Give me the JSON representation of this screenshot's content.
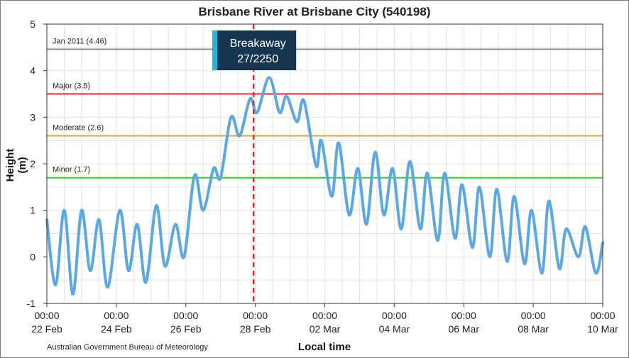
{
  "chart_data": {
    "type": "line",
    "title": "Brisbane River at Brisbane City (540198)",
    "xlabel": "Local time",
    "ylabel": "Height (m)",
    "ylim": [
      -1,
      5
    ],
    "yticks": [
      "-1",
      "0",
      "1",
      "2",
      "3",
      "4",
      "5"
    ],
    "xticks": [
      {
        "time": "00:00",
        "date": "22 Feb"
      },
      {
        "time": "00:00",
        "date": "24 Feb"
      },
      {
        "time": "00:00",
        "date": "26 Feb"
      },
      {
        "time": "00:00",
        "date": "28 Feb"
      },
      {
        "time": "00:00",
        "date": "02 Mar"
      },
      {
        "time": "00:00",
        "date": "04 Mar"
      },
      {
        "time": "00:00",
        "date": "06 Mar"
      },
      {
        "time": "00:00",
        "date": "08 Mar"
      },
      {
        "time": "00:00",
        "date": "10 Mar"
      }
    ],
    "xlim_days": [
      0,
      16
    ],
    "grid": true,
    "thresholds": [
      {
        "label": "Jan 2011 (4.46)",
        "value": 4.46,
        "color": "#8c8c8c"
      },
      {
        "label": "Major (3.5)",
        "value": 3.5,
        "color": "#e8262a"
      },
      {
        "label": "Moderate (2.6)",
        "value": 2.6,
        "color": "#f0a31f"
      },
      {
        "label": "Minor (1.7)",
        "value": 1.7,
        "color": "#2bd42b"
      }
    ],
    "event": {
      "label_line1": "Breakaway",
      "label_line2": "27/2250",
      "day": 5.95,
      "color": "#e8262a"
    },
    "series": [
      {
        "color": "#5aa9e6",
        "points": [
          [
            0.0,
            0.8
          ],
          [
            0.25,
            -0.6
          ],
          [
            0.5,
            1.0
          ],
          [
            0.75,
            -0.8
          ],
          [
            1.0,
            1.0
          ],
          [
            1.25,
            -0.3
          ],
          [
            1.5,
            0.8
          ],
          [
            1.75,
            -0.65
          ],
          [
            2.1,
            1.0
          ],
          [
            2.35,
            -0.3
          ],
          [
            2.6,
            0.7
          ],
          [
            2.85,
            -0.55
          ],
          [
            3.15,
            1.1
          ],
          [
            3.4,
            -0.2
          ],
          [
            3.7,
            0.7
          ],
          [
            3.95,
            0.0
          ],
          [
            4.25,
            1.75
          ],
          [
            4.5,
            1.0
          ],
          [
            4.8,
            1.9
          ],
          [
            5.0,
            1.7
          ],
          [
            5.3,
            3.0
          ],
          [
            5.55,
            2.6
          ],
          [
            5.85,
            3.4
          ],
          [
            6.05,
            3.1
          ],
          [
            6.4,
            3.85
          ],
          [
            6.7,
            3.1
          ],
          [
            6.9,
            3.45
          ],
          [
            7.2,
            2.9
          ],
          [
            7.4,
            3.35
          ],
          [
            7.75,
            1.95
          ],
          [
            7.9,
            2.5
          ],
          [
            8.2,
            1.3
          ],
          [
            8.4,
            2.45
          ],
          [
            8.7,
            0.9
          ],
          [
            8.95,
            1.9
          ],
          [
            9.2,
            0.7
          ],
          [
            9.45,
            2.25
          ],
          [
            9.7,
            0.9
          ],
          [
            9.95,
            1.9
          ],
          [
            10.2,
            0.6
          ],
          [
            10.45,
            2.05
          ],
          [
            10.75,
            0.6
          ],
          [
            10.95,
            1.8
          ],
          [
            11.25,
            0.35
          ],
          [
            11.45,
            1.8
          ],
          [
            11.75,
            0.4
          ],
          [
            11.95,
            1.55
          ],
          [
            12.25,
            0.2
          ],
          [
            12.45,
            1.5
          ],
          [
            12.75,
            0.0
          ],
          [
            12.95,
            1.45
          ],
          [
            13.25,
            -0.1
          ],
          [
            13.45,
            1.3
          ],
          [
            13.75,
            -0.15
          ],
          [
            13.95,
            1.0
          ],
          [
            14.25,
            -0.35
          ],
          [
            14.45,
            1.2
          ],
          [
            14.75,
            -0.25
          ],
          [
            14.95,
            0.6
          ],
          [
            15.3,
            0.0
          ],
          [
            15.5,
            0.65
          ],
          [
            15.8,
            -0.35
          ],
          [
            16.0,
            0.3
          ]
        ]
      }
    ]
  }
}
